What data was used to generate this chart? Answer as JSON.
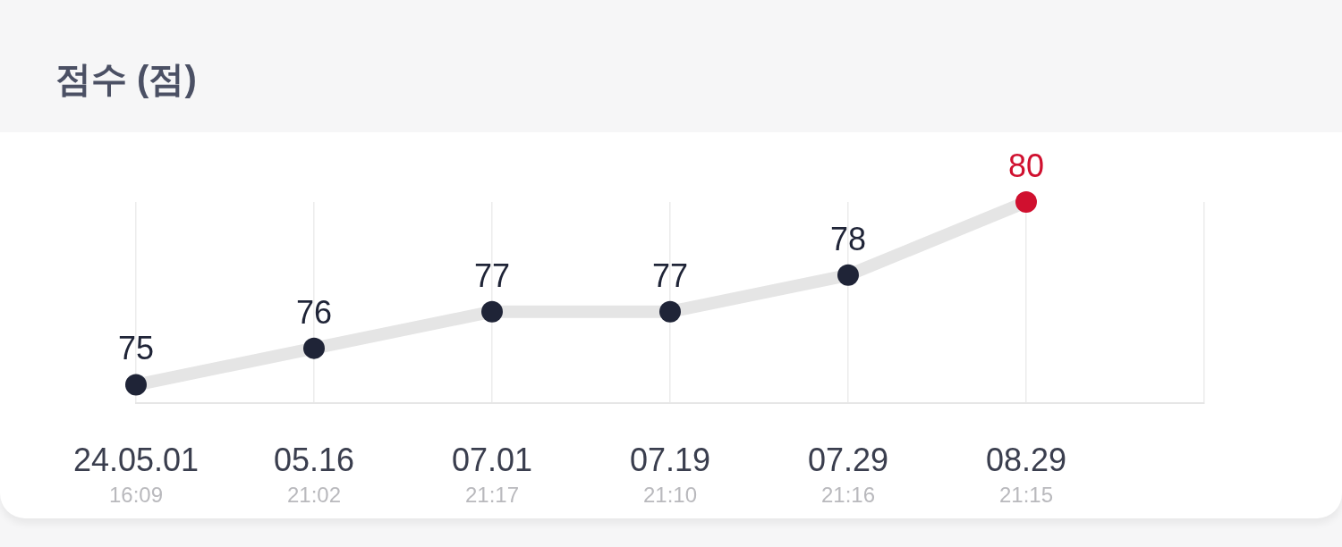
{
  "chart_data": {
    "type": "line",
    "title": "점수 (점)",
    "categories": [
      "24.05.01\n16:09",
      "05.16\n21:02",
      "07.01\n21:17",
      "07.19\n21:10",
      "07.29\n21:16",
      "08.29\n21:15",
      null
    ],
    "series": [
      {
        "color": "#e5e5e5",
        "colors": [
          "#1f2437",
          "#1f2437",
          "#1f2437",
          "#1f2437",
          "#1f2437",
          "#d0102f",
          null
        ],
        "values": [
          75,
          76,
          77,
          77,
          78,
          80,
          null
        ]
      }
    ],
    "ylim": [
      74.5,
      80
    ],
    "grid": "x",
    "marker": "circle",
    "line_style": "solid",
    "data_labels": true,
    "tick_labels": "x"
  }
}
